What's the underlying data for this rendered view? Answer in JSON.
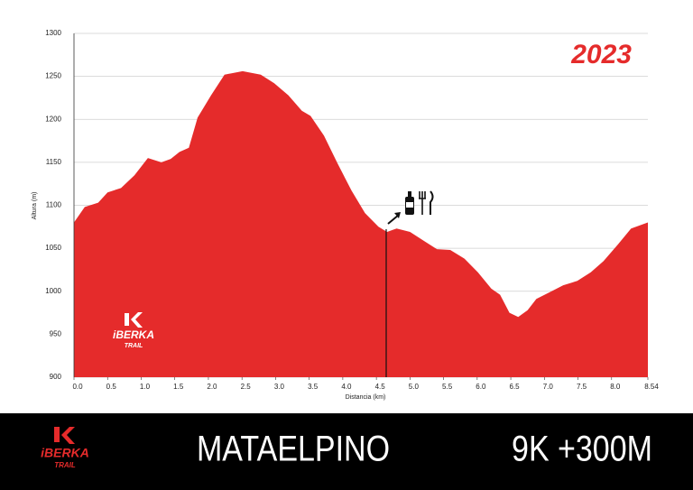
{
  "chart_data": {
    "type": "area",
    "annotation": "2023",
    "x_label": "Distancia (km)",
    "y_label": "Altura (m)",
    "x": [
      0,
      0.16,
      0.36,
      0.5,
      0.7,
      0.9,
      1.1,
      1.3,
      1.44,
      1.57,
      1.71,
      1.84,
      2.04,
      2.24,
      2.51,
      2.78,
      2.98,
      3.19,
      3.39,
      3.52,
      3.72,
      3.92,
      4.13,
      4.33,
      4.53,
      4.66,
      4.8,
      5.0,
      5.2,
      5.4,
      5.6,
      5.81,
      6.01,
      6.21,
      6.34,
      6.48,
      6.61,
      6.75,
      6.88,
      7.08,
      7.28,
      7.49,
      7.69,
      7.88,
      8.09,
      8.29,
      8.54
    ],
    "values": [
      1080,
      1098,
      1103,
      1115,
      1120,
      1135,
      1155,
      1150,
      1154,
      1162,
      1167,
      1202,
      1228,
      1252,
      1256,
      1252,
      1242,
      1228,
      1210,
      1204,
      1181,
      1149,
      1117,
      1091,
      1075,
      1069,
      1073,
      1069,
      1059,
      1049,
      1048,
      1038,
      1022,
      1003,
      996,
      975,
      970,
      978,
      991,
      999,
      1007,
      1012,
      1022,
      1035,
      1054,
      1073,
      1080
    ],
    "color": "#e52b2b",
    "xlim": [
      0,
      8.54
    ],
    "ylim": [
      900,
      1300
    ],
    "xticks": [
      {
        "value": 0,
        "label": "0.0"
      },
      0.5,
      {
        "value": 1,
        "label": "1.0"
      },
      1.5,
      {
        "value": 2,
        "label": "2.0"
      },
      2.5,
      {
        "value": 3,
        "label": "3.0"
      },
      3.5,
      {
        "value": 4,
        "label": "4.0"
      },
      4.5,
      {
        "value": 5,
        "label": "5.0"
      },
      5.5,
      {
        "value": 6,
        "label": "6.0"
      },
      6.5,
      {
        "value": 7,
        "label": "7.0"
      },
      7.5,
      {
        "value": 8,
        "label": "8.0"
      },
      8.54
    ],
    "yticks": [
      900,
      950,
      1000,
      1050,
      1100,
      1150,
      1200,
      1250,
      1300
    ],
    "grid": true
  },
  "logo": {
    "name": "iBERKA",
    "sub": "TRAIL"
  },
  "footer": {
    "title": "MATAELPINO",
    "stats": "9K +300M"
  }
}
